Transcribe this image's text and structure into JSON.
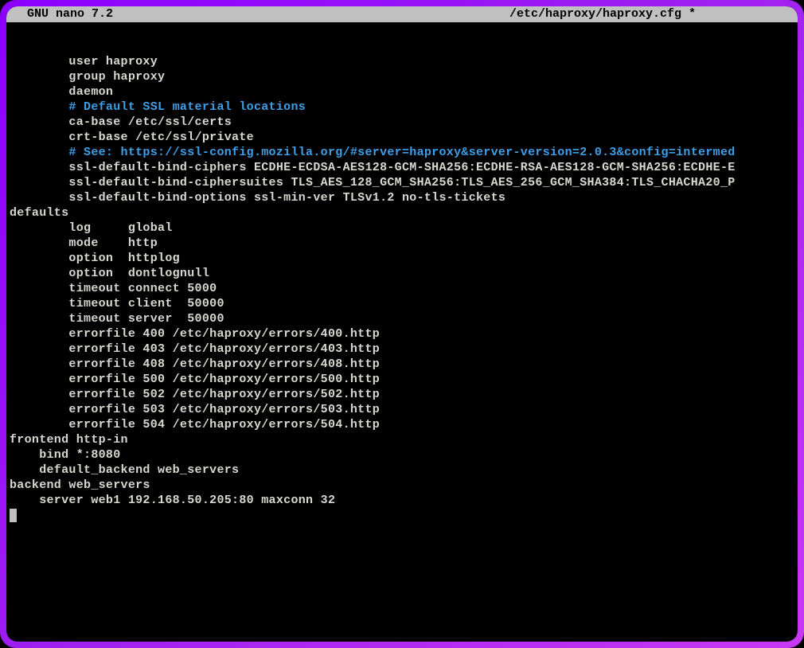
{
  "titlebar": {
    "app_name": "  GNU nano 7.2",
    "file_path": "/etc/haproxy/haproxy.cfg *",
    "background_color": "#c0c0c0",
    "text_color": "#000000"
  },
  "terminal": {
    "background_color": "#000000",
    "text_color": "#d8d8d0",
    "comment_color": "#3d9fe8",
    "font_size": 15,
    "line_height": 19,
    "border_gradient": [
      "#8b00ff",
      "#a020f0",
      "#c838f5"
    ],
    "border_radius": 20
  },
  "lines": [
    {
      "indent": "        ",
      "text": "user haproxy",
      "class": "normal"
    },
    {
      "indent": "        ",
      "text": "group haproxy",
      "class": "normal"
    },
    {
      "indent": "        ",
      "text": "daemon",
      "class": "normal"
    },
    {
      "indent": "",
      "text": "",
      "class": "normal"
    },
    {
      "indent": "        ",
      "text": "# Default SSL material locations",
      "class": "comment"
    },
    {
      "indent": "        ",
      "text": "ca-base /etc/ssl/certs",
      "class": "normal"
    },
    {
      "indent": "        ",
      "text": "crt-base /etc/ssl/private",
      "class": "normal"
    },
    {
      "indent": "",
      "text": "",
      "class": "normal"
    },
    {
      "indent": "        ",
      "text": "# See: https://ssl-config.mozilla.org/#server=haproxy&server-version=2.0.3&config=intermed",
      "class": "comment"
    },
    {
      "indent": "        ",
      "text": "ssl-default-bind-ciphers ECDHE-ECDSA-AES128-GCM-SHA256:ECDHE-RSA-AES128-GCM-SHA256:ECDHE-E",
      "class": "normal"
    },
    {
      "indent": "        ",
      "text": "ssl-default-bind-ciphersuites TLS_AES_128_GCM_SHA256:TLS_AES_256_GCM_SHA384:TLS_CHACHA20_P",
      "class": "normal"
    },
    {
      "indent": "        ",
      "text": "ssl-default-bind-options ssl-min-ver TLSv1.2 no-tls-tickets",
      "class": "normal"
    },
    {
      "indent": "",
      "text": "",
      "class": "normal"
    },
    {
      "indent": "",
      "text": "defaults",
      "class": "normal"
    },
    {
      "indent": "        ",
      "text": "log     global",
      "class": "normal"
    },
    {
      "indent": "        ",
      "text": "mode    http",
      "class": "normal"
    },
    {
      "indent": "        ",
      "text": "option  httplog",
      "class": "normal"
    },
    {
      "indent": "        ",
      "text": "option  dontlognull",
      "class": "normal"
    },
    {
      "indent": "        ",
      "text": "timeout connect 5000",
      "class": "normal"
    },
    {
      "indent": "        ",
      "text": "timeout client  50000",
      "class": "normal"
    },
    {
      "indent": "        ",
      "text": "timeout server  50000",
      "class": "normal"
    },
    {
      "indent": "        ",
      "text": "errorfile 400 /etc/haproxy/errors/400.http",
      "class": "normal"
    },
    {
      "indent": "        ",
      "text": "errorfile 403 /etc/haproxy/errors/403.http",
      "class": "normal"
    },
    {
      "indent": "        ",
      "text": "errorfile 408 /etc/haproxy/errors/408.http",
      "class": "normal"
    },
    {
      "indent": "        ",
      "text": "errorfile 500 /etc/haproxy/errors/500.http",
      "class": "normal"
    },
    {
      "indent": "        ",
      "text": "errorfile 502 /etc/haproxy/errors/502.http",
      "class": "normal"
    },
    {
      "indent": "        ",
      "text": "errorfile 503 /etc/haproxy/errors/503.http",
      "class": "normal"
    },
    {
      "indent": "        ",
      "text": "errorfile 504 /etc/haproxy/errors/504.http",
      "class": "normal"
    },
    {
      "indent": "",
      "text": "",
      "class": "normal"
    },
    {
      "indent": "",
      "text": "frontend http-in",
      "class": "normal"
    },
    {
      "indent": "    ",
      "text": "bind *:8080",
      "class": "normal"
    },
    {
      "indent": "    ",
      "text": "default_backend web_servers",
      "class": "normal"
    },
    {
      "indent": "",
      "text": "",
      "class": "normal"
    },
    {
      "indent": "",
      "text": "backend web_servers",
      "class": "normal"
    },
    {
      "indent": "    ",
      "text": "server web1 192.168.50.205:80 maxconn 32",
      "class": "normal"
    }
  ]
}
